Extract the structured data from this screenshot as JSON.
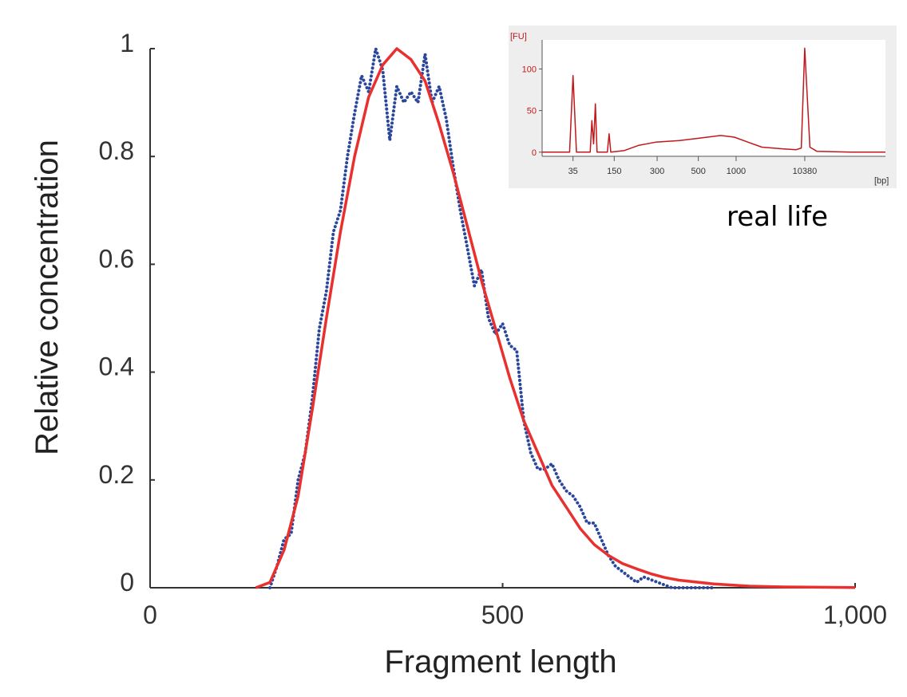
{
  "chart_data": [
    {
      "type": "line",
      "title": "",
      "xlabel": "Fragment length",
      "ylabel": "Relative concentration",
      "xlim": [
        0,
        1000
      ],
      "ylim": [
        0,
        1
      ],
      "x_ticks": [
        0,
        500,
        1000
      ],
      "x_tick_labels": [
        "0",
        "500",
        "1,000"
      ],
      "y_ticks": [
        0,
        0.2,
        0.4,
        0.6,
        0.8,
        1
      ],
      "y_tick_labels": [
        "0",
        "0.2",
        "0.4",
        "0.6",
        "0.8",
        "1"
      ],
      "grid": false,
      "series": [
        {
          "style": "dotted",
          "color": "#2b479d",
          "points": [
            [
              170,
              0.0
            ],
            [
              180,
              0.04
            ],
            [
              190,
              0.09
            ],
            [
              200,
              0.1
            ],
            [
              210,
              0.2
            ],
            [
              220,
              0.25
            ],
            [
              230,
              0.35
            ],
            [
              240,
              0.48
            ],
            [
              250,
              0.55
            ],
            [
              260,
              0.66
            ],
            [
              270,
              0.7
            ],
            [
              280,
              0.8
            ],
            [
              290,
              0.88
            ],
            [
              300,
              0.95
            ],
            [
              310,
              0.92
            ],
            [
              320,
              1.0
            ],
            [
              330,
              0.96
            ],
            [
              340,
              0.83
            ],
            [
              350,
              0.93
            ],
            [
              360,
              0.9
            ],
            [
              370,
              0.92
            ],
            [
              380,
              0.9
            ],
            [
              390,
              0.99
            ],
            [
              400,
              0.9
            ],
            [
              410,
              0.93
            ],
            [
              420,
              0.87
            ],
            [
              430,
              0.78
            ],
            [
              440,
              0.7
            ],
            [
              450,
              0.63
            ],
            [
              460,
              0.56
            ],
            [
              470,
              0.59
            ],
            [
              480,
              0.5
            ],
            [
              490,
              0.47
            ],
            [
              500,
              0.49
            ],
            [
              510,
              0.45
            ],
            [
              520,
              0.44
            ],
            [
              530,
              0.31
            ],
            [
              540,
              0.25
            ],
            [
              550,
              0.22
            ],
            [
              560,
              0.22
            ],
            [
              570,
              0.23
            ],
            [
              580,
              0.2
            ],
            [
              590,
              0.18
            ],
            [
              600,
              0.17
            ],
            [
              610,
              0.15
            ],
            [
              620,
              0.12
            ],
            [
              630,
              0.12
            ],
            [
              640,
              0.09
            ],
            [
              650,
              0.06
            ],
            [
              660,
              0.04
            ],
            [
              670,
              0.03
            ],
            [
              680,
              0.02
            ],
            [
              690,
              0.01
            ],
            [
              700,
              0.02
            ],
            [
              720,
              0.01
            ],
            [
              740,
              0.0
            ],
            [
              800,
              0.0
            ]
          ]
        },
        {
          "style": "solid",
          "color": "#e8302e",
          "points": [
            [
              150,
              0.0
            ],
            [
              170,
              0.01
            ],
            [
              190,
              0.07
            ],
            [
              210,
              0.17
            ],
            [
              230,
              0.33
            ],
            [
              250,
              0.5
            ],
            [
              270,
              0.66
            ],
            [
              290,
              0.8
            ],
            [
              310,
              0.91
            ],
            [
              330,
              0.97
            ],
            [
              350,
              1.0
            ],
            [
              370,
              0.98
            ],
            [
              390,
              0.94
            ],
            [
              410,
              0.86
            ],
            [
              430,
              0.77
            ],
            [
              450,
              0.67
            ],
            [
              470,
              0.57
            ],
            [
              490,
              0.48
            ],
            [
              510,
              0.39
            ],
            [
              530,
              0.31
            ],
            [
              550,
              0.25
            ],
            [
              570,
              0.19
            ],
            [
              590,
              0.15
            ],
            [
              610,
              0.11
            ],
            [
              630,
              0.08
            ],
            [
              650,
              0.06
            ],
            [
              670,
              0.045
            ],
            [
              690,
              0.035
            ],
            [
              710,
              0.026
            ],
            [
              730,
              0.019
            ],
            [
              750,
              0.014
            ],
            [
              800,
              0.007
            ],
            [
              850,
              0.003
            ],
            [
              900,
              0.0015
            ],
            [
              1000,
              0.0005
            ]
          ]
        }
      ]
    },
    {
      "type": "line",
      "title": "",
      "xlabel": "[bp]",
      "ylabel": "[FU]",
      "x_tick_labels": [
        "35",
        "150",
        "300",
        "500",
        "1000",
        "10380"
      ],
      "x_tick_positions": [
        0.09,
        0.21,
        0.335,
        0.455,
        0.565,
        0.765
      ],
      "y_ticks": [
        0,
        50,
        100
      ],
      "y_tick_labels": [
        "0",
        "50",
        "100"
      ],
      "ylim": [
        -5,
        135
      ],
      "color": "#c0181b",
      "points": [
        [
          0.0,
          0
        ],
        [
          0.08,
          0
        ],
        [
          0.09,
          92
        ],
        [
          0.1,
          0
        ],
        [
          0.14,
          0
        ],
        [
          0.145,
          38
        ],
        [
          0.15,
          10
        ],
        [
          0.155,
          58
        ],
        [
          0.16,
          0
        ],
        [
          0.19,
          0
        ],
        [
          0.195,
          22
        ],
        [
          0.2,
          0
        ],
        [
          0.24,
          2
        ],
        [
          0.28,
          8
        ],
        [
          0.33,
          12
        ],
        [
          0.4,
          14
        ],
        [
          0.46,
          17
        ],
        [
          0.52,
          20
        ],
        [
          0.56,
          18
        ],
        [
          0.6,
          12
        ],
        [
          0.64,
          6
        ],
        [
          0.7,
          4
        ],
        [
          0.74,
          3
        ],
        [
          0.755,
          5
        ],
        [
          0.765,
          125
        ],
        [
          0.78,
          6
        ],
        [
          0.8,
          1
        ],
        [
          0.9,
          0
        ],
        [
          1.0,
          0
        ]
      ]
    }
  ],
  "caption": "real life"
}
